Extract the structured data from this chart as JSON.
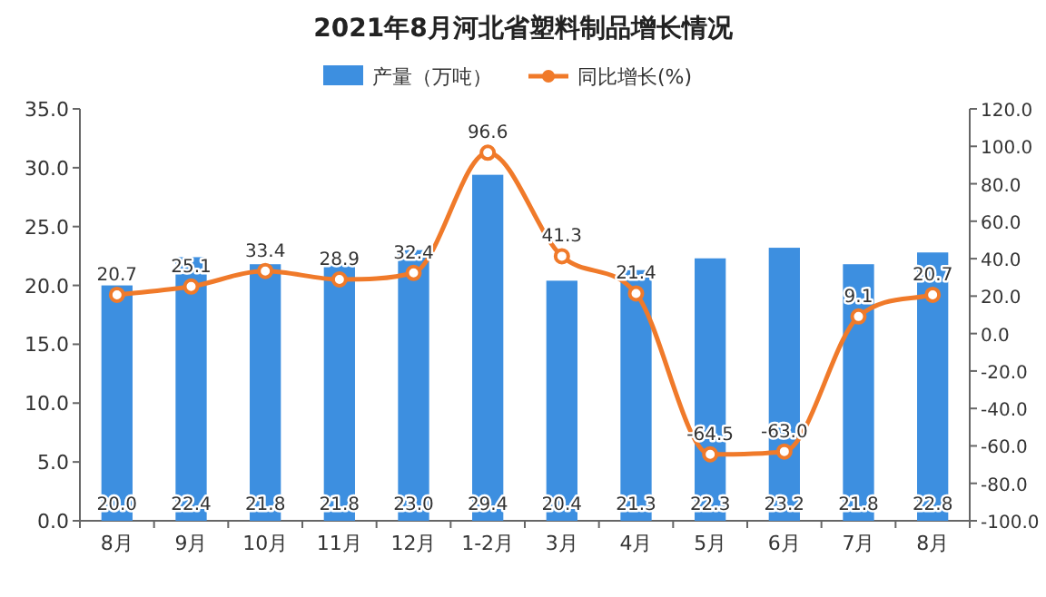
{
  "chart_data": {
    "type": "bar",
    "title": "2021年8月河北省塑料制品增长情况",
    "categories": [
      "8月",
      "9月",
      "10月",
      "11月",
      "12月",
      "1-2月",
      "3月",
      "4月",
      "5月",
      "6月",
      "7月",
      "8月"
    ],
    "series": [
      {
        "name": "产量（万吨）",
        "color": "#3d8fe0",
        "values": [
          20.0,
          22.4,
          21.8,
          21.8,
          23.0,
          29.4,
          20.4,
          21.3,
          22.3,
          23.2,
          21.8,
          22.8
        ],
        "value_labels": [
          "20.0",
          "22.4",
          "21.8",
          "21.8",
          "23.0",
          "29.4",
          "20.4",
          "21.3",
          "22.3",
          "23.2",
          "21.8",
          "22.8"
        ]
      },
      {
        "name": "同比增长(%)",
        "type": "line",
        "axis": "y2",
        "color": "#f07a2a",
        "marker": "circle",
        "values": [
          20.7,
          25.1,
          33.4,
          28.9,
          32.4,
          96.6,
          41.3,
          21.4,
          -64.5,
          -63.0,
          9.1,
          20.7
        ],
        "value_labels": [
          "20.7",
          "25.1",
          "33.4",
          "28.9",
          "32.4",
          "96.6",
          "41.3",
          "21.4",
          "-64.5",
          "-63.0",
          "9.1",
          "20.7"
        ]
      }
    ],
    "ylim": [
      0,
      35
    ],
    "yticks": [
      {
        "value": 0,
        "label": "0.0"
      },
      {
        "value": 5,
        "label": "5.0"
      },
      {
        "value": 10,
        "label": "10.0"
      },
      {
        "value": 15,
        "label": "15.0"
      },
      {
        "value": 20,
        "label": "20.0"
      },
      {
        "value": 25,
        "label": "25.0"
      },
      {
        "value": 30,
        "label": "30.0"
      },
      {
        "value": 35,
        "label": "35.0"
      }
    ],
    "y2lim": [
      -100,
      120
    ],
    "y2ticks": [
      {
        "value": -100,
        "label": "-100.0"
      },
      {
        "value": -80,
        "label": "-80.0"
      },
      {
        "value": -60,
        "label": "-60.0"
      },
      {
        "value": -40,
        "label": "-40.0"
      },
      {
        "value": -20,
        "label": "-20.0"
      },
      {
        "value": 0,
        "label": "0.0"
      },
      {
        "value": 20,
        "label": "20.0"
      },
      {
        "value": 40,
        "label": "40.0"
      },
      {
        "value": 60,
        "label": "60.0"
      },
      {
        "value": 80,
        "label": "80.0"
      },
      {
        "value": 100,
        "label": "100.0"
      },
      {
        "value": 120,
        "label": "120.0"
      }
    ],
    "legend": "top",
    "grid": false
  }
}
